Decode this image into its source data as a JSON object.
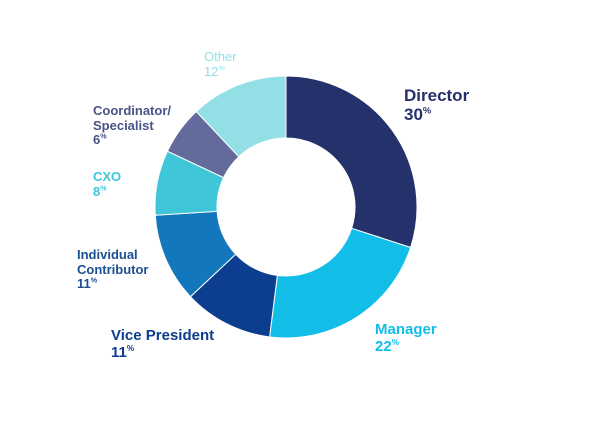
{
  "chart_data": {
    "type": "pie",
    "donut": true,
    "categories": [
      "Director",
      "Manager",
      "Vice President",
      "Individual Contributor",
      "CXO",
      "Coordinator/ Specialist",
      "Other"
    ],
    "values": [
      30,
      22,
      11,
      11,
      8,
      6,
      12
    ],
    "colors": [
      "#25316b",
      "#12bde8",
      "#0c3d8e",
      "#1377bd",
      "#3fc6d9",
      "#636b9c",
      "#92dfe6"
    ],
    "percent_sign": "%",
    "labels": [
      {
        "lines": [
          "Director"
        ],
        "pct": "30",
        "color": "#25316b"
      },
      {
        "lines": [
          "Manager"
        ],
        "pct": "22",
        "color": "#12bde8"
      },
      {
        "lines": [
          "Vice President"
        ],
        "pct": "11",
        "color": "#0c3d8e"
      },
      {
        "lines": [
          "Individual",
          "Contributor"
        ],
        "pct": "11",
        "color": "#1c4f8f"
      },
      {
        "lines": [
          "CXO"
        ],
        "pct": "8",
        "color": "#3fc6d9"
      },
      {
        "lines": [
          "Coordinator/",
          "Specialist"
        ],
        "pct": "6",
        "color": "#4a5385"
      },
      {
        "lines": [
          "Other"
        ],
        "pct": "12",
        "color": "#92dfe6"
      }
    ]
  }
}
